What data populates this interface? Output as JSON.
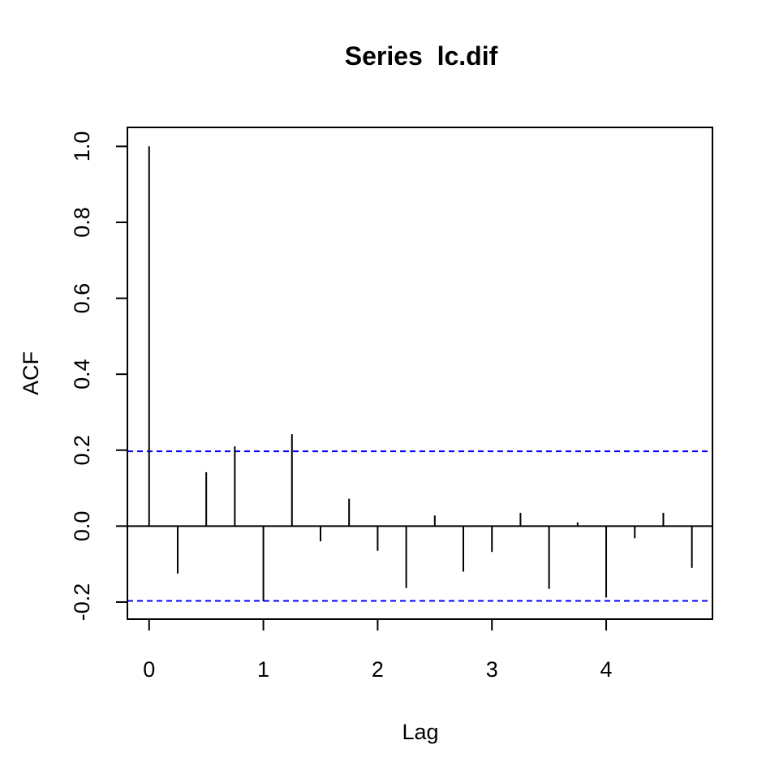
{
  "chart_data": {
    "type": "bar",
    "title": "Series  lc.dif",
    "xlabel": "Lag",
    "ylabel": "ACF",
    "x_ticks": [
      "0",
      "1",
      "2",
      "3",
      "4"
    ],
    "y_ticks": [
      "-0.2",
      "0.0",
      "0.2",
      "0.4",
      "0.6",
      "0.8",
      "1.0"
    ],
    "xlim": [
      -0.19,
      4.93
    ],
    "ylim": [
      -0.245,
      1.05
    ],
    "lags": [
      0,
      0.25,
      0.5,
      0.75,
      1,
      1.25,
      1.5,
      1.75,
      2,
      2.25,
      2.5,
      2.75,
      3,
      3.25,
      3.5,
      3.75,
      4,
      4.25,
      4.5,
      4.75
    ],
    "acf": [
      1.0,
      -0.125,
      0.142,
      0.21,
      -0.198,
      0.242,
      -0.04,
      0.072,
      -0.065,
      -0.163,
      0.028,
      -0.12,
      -0.068,
      0.035,
      -0.165,
      0.01,
      -0.188,
      -0.032,
      0.035,
      -0.11
    ],
    "confidence_bound": 0.197,
    "confidence_line_color": "#0000ff",
    "spike_color": "#000000",
    "grid": false,
    "legend": "none"
  }
}
